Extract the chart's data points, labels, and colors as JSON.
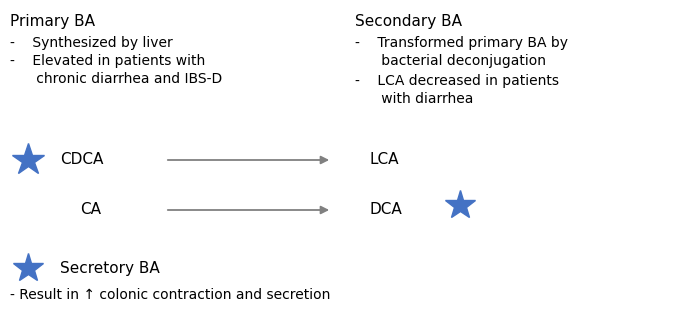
{
  "background_color": "#ffffff",
  "star_color": "#4472c4",
  "arrow_color": "#808080",
  "text_color": "#000000",
  "primary_ba_title": "Primary BA",
  "primary_ba_bullet1": "-    Synthesized by liver",
  "primary_ba_bullet2": "-    Elevated in patients with\n      chronic diarrhea and IBS-D",
  "secondary_ba_title": "Secondary BA",
  "secondary_ba_bullet1": "-    Transformed primary BA by\n      bacterial deconjugation",
  "secondary_ba_bullet2": "-    LCA decreased in patients\n      with diarrhea",
  "cdca_label": "CDCA",
  "ca_label": "CA",
  "lca_label": "LCA",
  "dca_label": "DCA",
  "secretory_ba_title": "Secretory BA",
  "secretory_ba_bullet": "- Result in ↑ colonic contraction and secretion",
  "fontsize_title": 11,
  "fontsize_body": 10,
  "fontsize_label": 11,
  "fig_width": 6.85,
  "fig_height": 3.32,
  "dpi": 100
}
